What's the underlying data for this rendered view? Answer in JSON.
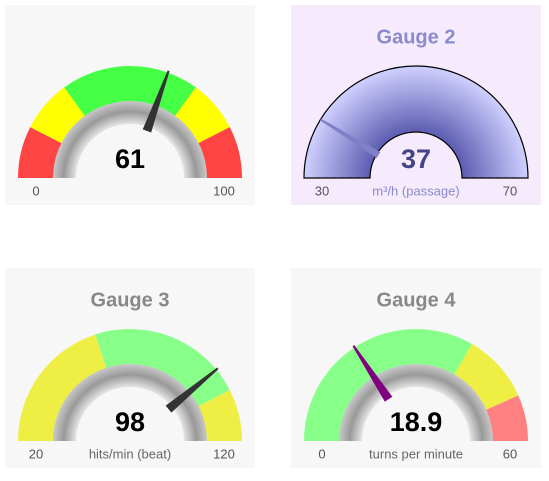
{
  "chart_data": [
    {
      "type": "gauge",
      "value": 61,
      "min": 0,
      "max": 100,
      "background": "#f7f7f7",
      "needle_color": "#333333",
      "value_color": "#000000",
      "sectors": [
        {
          "from": 0,
          "to": 15,
          "color": "#ff4444"
        },
        {
          "from": 15,
          "to": 30,
          "color": "#ffff00"
        },
        {
          "from": 30,
          "to": 70,
          "color": "#44ff44"
        },
        {
          "from": 70,
          "to": 85,
          "color": "#ffff00"
        },
        {
          "from": 85,
          "to": 100,
          "color": "#ff4444"
        }
      ]
    },
    {
      "type": "gauge",
      "title": "Gauge 2",
      "value": 37,
      "min": 30,
      "max": 70,
      "label": "m³/h (passage)",
      "background": "#f5ebfc",
      "needle_color": "#8080c8",
      "value_color": "#444488",
      "title_color": "#8a8acc",
      "label_color": "#8a8acc",
      "gradient": [
        "#5a5ab0",
        "#d0d0ff"
      ]
    },
    {
      "type": "gauge",
      "title": "Gauge 3",
      "value": 98,
      "min": 20,
      "max": 120,
      "label": "hits/min (beat)",
      "background": "#f7f7f7",
      "needle_color": "#333333",
      "value_color": "#000000",
      "title_color": "#888888",
      "label_color": "#666666",
      "sectors": [
        {
          "from": 20,
          "to": 60,
          "color": "#eeee44"
        },
        {
          "from": 60,
          "to": 105,
          "color": "#88ff88"
        },
        {
          "from": 105,
          "to": 120,
          "color": "#eeee44"
        }
      ]
    },
    {
      "type": "gauge",
      "title": "Gauge 4",
      "value": 18.9,
      "min": 0,
      "max": 60,
      "label": "turns per minute",
      "background": "#f7f7f7",
      "needle_color": "#800080",
      "value_color": "#000000",
      "title_color": "#888888",
      "label_color": "#666666",
      "sectors": [
        {
          "from": 0,
          "to": 40,
          "color": "#88ff88"
        },
        {
          "from": 40,
          "to": 52,
          "color": "#eeee44"
        },
        {
          "from": 52,
          "to": 60,
          "color": "#ff8080"
        }
      ]
    }
  ]
}
